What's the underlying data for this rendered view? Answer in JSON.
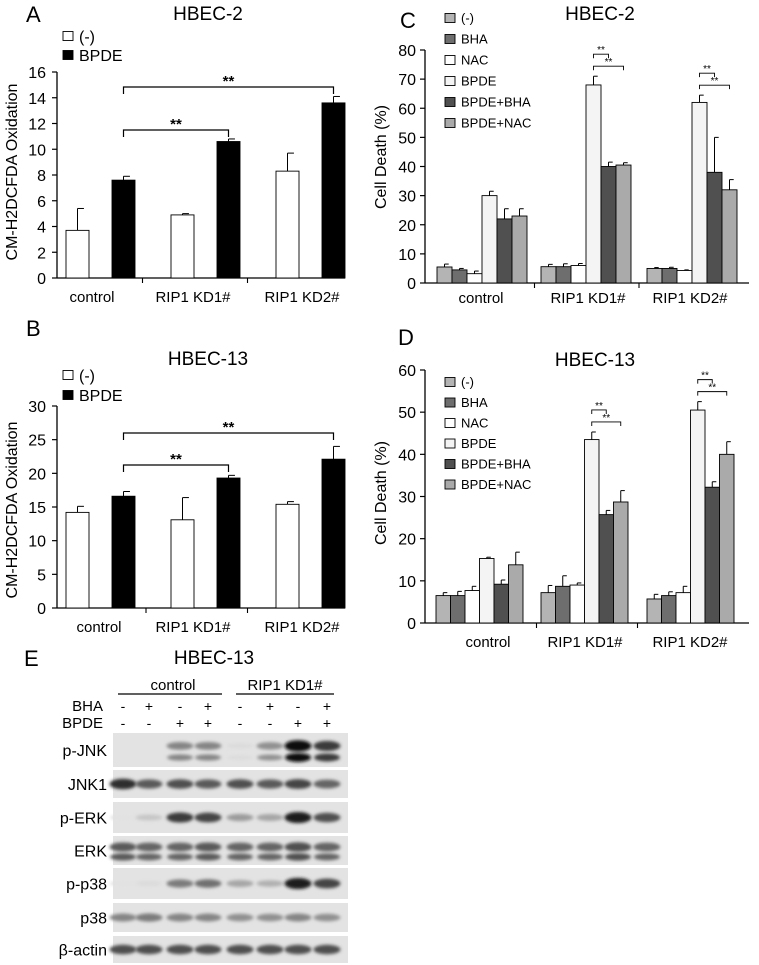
{
  "panels": {
    "A": {
      "letter": "A",
      "title": "HBEC-2"
    },
    "B": {
      "letter": "B",
      "title": "HBEC-13"
    },
    "C": {
      "letter": "C",
      "title": "HBEC-2"
    },
    "D": {
      "letter": "D",
      "title": "HBEC-13"
    },
    "E": {
      "letter": "E",
      "title": "HBEC-13"
    }
  },
  "significance_label": "**",
  "colors": {
    "minus": "#ffffff",
    "bpde_black": "#000000",
    "c_minus": "#b4b4b4",
    "c_bha": "#6e6e6e",
    "c_nac": "#ffffff",
    "c_bpde": "#f4f4f4",
    "c_bpde_bha": "#505050",
    "c_bpde_nac": "#aaaaaa"
  },
  "chart_data": [
    {
      "id": "A",
      "type": "bar",
      "ylabel": "CM-H2DCFDA Oxidation",
      "ylim": [
        0,
        16
      ],
      "yticks": [
        0,
        2,
        4,
        6,
        8,
        10,
        12,
        14,
        16
      ],
      "categories": [
        "control",
        "RIP1 KD1#",
        "RIP1 KD2#"
      ],
      "legend_position": "top-left",
      "series": [
        {
          "name": "(-)",
          "values": [
            3.7,
            4.9,
            8.3
          ],
          "errors": [
            1.7,
            0.1,
            1.4
          ]
        },
        {
          "name": "BPDE",
          "values": [
            7.6,
            10.6,
            13.6
          ],
          "errors": [
            0.3,
            0.2,
            0.5
          ]
        }
      ],
      "comparisons": [
        {
          "from": "control",
          "to": "RIP1 KD1#",
          "label": "**"
        },
        {
          "from": "control",
          "to": "RIP1 KD2#",
          "label": "**"
        }
      ]
    },
    {
      "id": "B",
      "type": "bar",
      "ylabel": "CM-H2DCFDA Oxidation",
      "ylim": [
        0,
        30
      ],
      "yticks": [
        0,
        5,
        10,
        15,
        20,
        25,
        30
      ],
      "categories": [
        "control",
        "RIP1 KD1#",
        "RIP1 KD2#"
      ],
      "legend_position": "top-left",
      "series": [
        {
          "name": "(-)",
          "values": [
            14.2,
            13.1,
            15.4
          ],
          "errors": [
            0.9,
            3.3,
            0.4
          ]
        },
        {
          "name": "BPDE",
          "values": [
            16.6,
            19.3,
            22.1
          ],
          "errors": [
            0.7,
            0.4,
            1.9
          ]
        }
      ],
      "comparisons": [
        {
          "from": "control",
          "to": "RIP1 KD1#",
          "label": "**"
        },
        {
          "from": "control",
          "to": "RIP1 KD2#",
          "label": "**"
        }
      ]
    },
    {
      "id": "C",
      "type": "bar",
      "ylabel": "Cell Death (%)",
      "ylim": [
        0,
        80
      ],
      "yticks": [
        0,
        10,
        20,
        30,
        40,
        50,
        60,
        70,
        80
      ],
      "categories": [
        "control",
        "RIP1 KD1#",
        "RIP1 KD2#"
      ],
      "legend_position": "top-left",
      "series": [
        {
          "name": "(-)",
          "values": [
            5.5,
            5.6,
            5.0
          ],
          "errors": [
            1.0,
            0.8,
            0.3
          ]
        },
        {
          "name": "BHA",
          "values": [
            4.5,
            5.6,
            5.0
          ],
          "errors": [
            0.5,
            1.0,
            0.4
          ]
        },
        {
          "name": "NAC",
          "values": [
            3.2,
            6.0,
            4.3
          ],
          "errors": [
            0.9,
            0.7,
            0.2
          ]
        },
        {
          "name": "BPDE",
          "values": [
            30.0,
            68.0,
            62.0
          ],
          "errors": [
            1.5,
            3.0,
            2.5
          ]
        },
        {
          "name": "BPDE+BHA",
          "values": [
            22.0,
            40.0,
            38.0
          ],
          "errors": [
            3.5,
            1.5,
            12.0
          ]
        },
        {
          "name": "BPDE+NAC",
          "values": [
            23.0,
            40.5,
            32.0
          ],
          "errors": [
            2.5,
            0.8,
            3.5
          ]
        }
      ],
      "comparisons": [
        {
          "category": "RIP1 KD1#",
          "from": "BPDE",
          "to": "BPDE+BHA",
          "label": "**"
        },
        {
          "category": "RIP1 KD1#",
          "from": "BPDE",
          "to": "BPDE+NAC",
          "label": "**"
        },
        {
          "category": "RIP1 KD2#",
          "from": "BPDE",
          "to": "BPDE+BHA",
          "label": "**"
        },
        {
          "category": "RIP1 KD2#",
          "from": "BPDE",
          "to": "BPDE+NAC",
          "label": "**"
        }
      ]
    },
    {
      "id": "D",
      "type": "bar",
      "ylabel": "Cell Death (%)",
      "ylim": [
        0,
        60
      ],
      "yticks": [
        0,
        10,
        20,
        30,
        40,
        50,
        60
      ],
      "categories": [
        "control",
        "RIP1 KD1#",
        "RIP1 KD2#"
      ],
      "legend_position": "top-left",
      "series": [
        {
          "name": "(-)",
          "values": [
            6.5,
            7.2,
            5.7
          ],
          "errors": [
            0.7,
            1.7,
            1.1
          ]
        },
        {
          "name": "BHA",
          "values": [
            6.5,
            8.7,
            6.5
          ],
          "errors": [
            1.0,
            2.5,
            0.9
          ]
        },
        {
          "name": "NAC",
          "values": [
            7.7,
            9.0,
            7.2
          ],
          "errors": [
            1.0,
            0.5,
            1.5
          ]
        },
        {
          "name": "BPDE",
          "values": [
            15.3,
            43.5,
            50.5
          ],
          "errors": [
            0.3,
            1.8,
            2.0
          ]
        },
        {
          "name": "BPDE+BHA",
          "values": [
            9.2,
            25.7,
            32.2
          ],
          "errors": [
            1.0,
            1.0,
            1.3
          ]
        },
        {
          "name": "BPDE+NAC",
          "values": [
            13.8,
            28.7,
            40.0
          ],
          "errors": [
            3.0,
            2.7,
            3.0
          ]
        }
      ],
      "comparisons": [
        {
          "category": "RIP1 KD1#",
          "from": "BPDE",
          "to": "BPDE+BHA",
          "label": "**"
        },
        {
          "category": "RIP1 KD1#",
          "from": "BPDE",
          "to": "BPDE+NAC",
          "label": "**"
        },
        {
          "category": "RIP1 KD2#",
          "from": "BPDE",
          "to": "BPDE+BHA",
          "label": "**"
        },
        {
          "category": "RIP1 KD2#",
          "from": "BPDE",
          "to": "BPDE+NAC",
          "label": "**"
        }
      ]
    }
  ],
  "blot": {
    "groups": [
      "control",
      "RIP1 KD1#"
    ],
    "treatments": [
      {
        "name": "BHA",
        "signs": [
          "-",
          "+",
          "-",
          "+",
          "-",
          "+",
          "-",
          "+"
        ]
      },
      {
        "name": "BPDE",
        "signs": [
          "-",
          "-",
          "+",
          "+",
          "-",
          "-",
          "+",
          "+"
        ]
      }
    ],
    "rows": [
      {
        "label": "p-JNK",
        "intensity": [
          0,
          0,
          0.45,
          0.45,
          0.05,
          0.4,
          1.0,
          0.8
        ],
        "double": true
      },
      {
        "label": "JNK1",
        "intensity": [
          0.85,
          0.65,
          0.7,
          0.65,
          0.7,
          0.65,
          0.75,
          0.6
        ],
        "double": false
      },
      {
        "label": "p-ERK",
        "intensity": [
          0.02,
          0.15,
          0.8,
          0.75,
          0.35,
          0.3,
          0.95,
          0.7
        ],
        "double": false
      },
      {
        "label": "ERK",
        "intensity": [
          0.65,
          0.6,
          0.6,
          0.65,
          0.6,
          0.6,
          0.7,
          0.6
        ],
        "double": true
      },
      {
        "label": "p-p38",
        "intensity": [
          0.02,
          0.05,
          0.5,
          0.55,
          0.3,
          0.25,
          0.95,
          0.75
        ],
        "double": false
      },
      {
        "label": "p38",
        "intensity": [
          0.45,
          0.5,
          0.45,
          0.45,
          0.4,
          0.4,
          0.45,
          0.4
        ],
        "double": false
      },
      {
        "label": "β-actin",
        "intensity": [
          0.7,
          0.7,
          0.7,
          0.7,
          0.7,
          0.7,
          0.7,
          0.7
        ],
        "double": false
      }
    ]
  }
}
